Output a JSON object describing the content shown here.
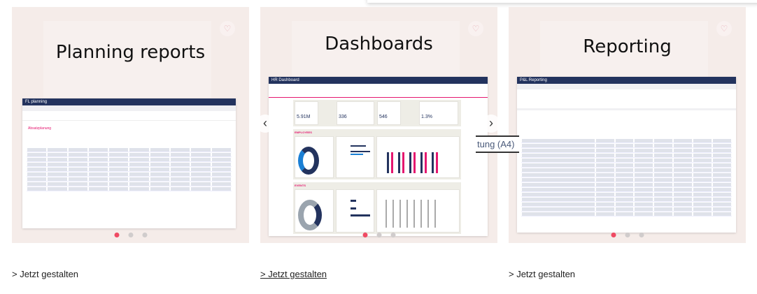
{
  "cards": [
    {
      "title": "Planning reports",
      "link": "> Jetzt gestalten",
      "preview_title": "FL planning",
      "preview_section": "Absatzplanung"
    },
    {
      "title": "Dashboards",
      "link": "> Jetzt gestalten",
      "preview_title": "HR Dashboard",
      "kpis": [
        "5.91M",
        "336",
        "546",
        "1.3%"
      ],
      "section1": "EMPLOYEES",
      "section2": "EVENTS"
    },
    {
      "title": "Reporting",
      "link": "> Jetzt gestalten",
      "preview_title": "P&L Reporting"
    }
  ],
  "carousel": {
    "prev_icon": "‹",
    "next_icon": "›",
    "active_dot": 0
  },
  "overlay_text": "tung (A4)",
  "colors": {
    "card_bg": "#f5ece9",
    "navy": "#23335e",
    "accent": "#e5176f",
    "dot_active": "#ef4a63"
  }
}
